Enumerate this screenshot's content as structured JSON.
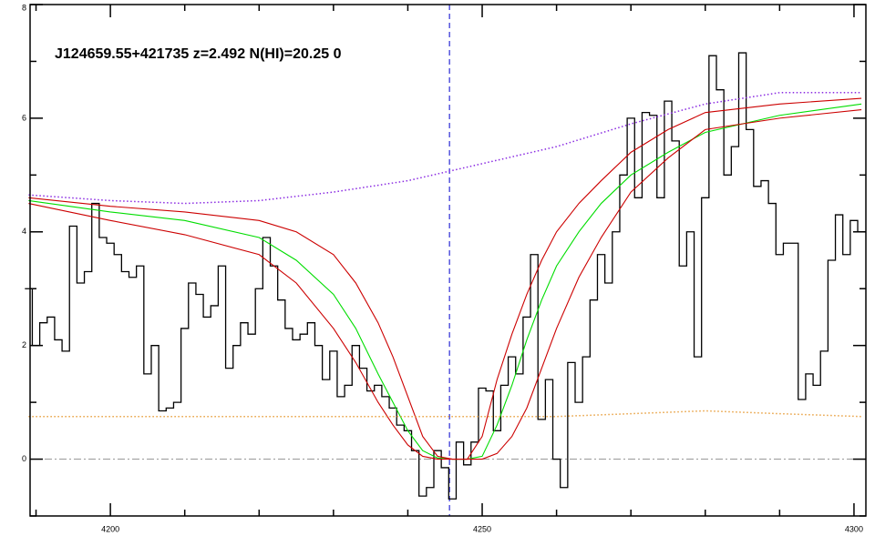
{
  "chart_data": {
    "type": "line",
    "title": "J124659.55+421735 z=2.492 N(HI)=20.25 0",
    "xlim": [
      4189.2,
      4301.6
    ],
    "ylim": [
      -1,
      8
    ],
    "xticks": [
      4200,
      4250,
      4300
    ],
    "yticks": [
      0,
      2,
      4,
      6,
      8
    ],
    "xminorticks": [
      4190,
      4210,
      4220,
      4230,
      4240,
      4260,
      4270,
      4280,
      4290
    ],
    "yminorticks": [
      -1,
      1,
      3,
      5,
      7
    ],
    "vline": 4245.6,
    "hline": 0,
    "series": [
      {
        "color": "#000000",
        "step": true,
        "x": [
          4189,
          4190,
          4191,
          4192,
          4193,
          4194,
          4195,
          4196,
          4197,
          4198,
          4199,
          4200,
          4201,
          4202,
          4203,
          4204,
          4205,
          4206,
          4207,
          4208,
          4209,
          4210,
          4211,
          4212,
          4213,
          4214,
          4215,
          4216,
          4217,
          4218,
          4219,
          4220,
          4221,
          4222,
          4223,
          4224,
          4225,
          4226,
          4227,
          4228,
          4229,
          4230,
          4231,
          4232,
          4233,
          4234,
          4235,
          4236,
          4237,
          4238,
          4239,
          4240,
          4241,
          4242,
          4243,
          4244,
          4245,
          4246,
          4247,
          4248,
          4249,
          4250,
          4251,
          4252,
          4253,
          4254,
          4255,
          4256,
          4257,
          4258,
          4259,
          4260,
          4261,
          4262,
          4263,
          4264,
          4265,
          4266,
          4267,
          4268,
          4269,
          4270,
          4271,
          4272,
          4273,
          4274,
          4275,
          4276,
          4277,
          4278,
          4279,
          4280,
          4281,
          4282,
          4283,
          4284,
          4285,
          4286,
          4287,
          4288,
          4289,
          4290,
          4291,
          4292,
          4293,
          4294,
          4295,
          4296,
          4297,
          4298,
          4299,
          4300,
          4301
        ],
        "values": [
          3.0,
          2.0,
          2.4,
          2.5,
          2.1,
          1.9,
          4.1,
          3.1,
          3.3,
          4.5,
          3.9,
          3.8,
          3.6,
          3.3,
          3.2,
          3.4,
          1.5,
          2.0,
          0.85,
          0.9,
          1.0,
          2.3,
          3.1,
          2.9,
          2.5,
          2.7,
          3.4,
          1.6,
          2.0,
          2.4,
          2.2,
          3.0,
          3.9,
          3.4,
          2.8,
          2.3,
          2.1,
          2.2,
          2.4,
          2.0,
          1.4,
          1.9,
          1.1,
          1.3,
          2.0,
          1.6,
          1.2,
          1.3,
          1.1,
          0.9,
          0.6,
          0.5,
          0.15,
          -0.65,
          -0.5,
          0.15,
          -0.15,
          -0.7,
          0.3,
          -0.1,
          0.3,
          1.25,
          1.2,
          0.5,
          1.3,
          1.8,
          1.5,
          2.5,
          3.6,
          0.7,
          1.4,
          0.0,
          -0.5,
          1.7,
          1.0,
          1.8,
          2.8,
          3.6,
          3.1,
          4.0,
          5.0,
          6.0,
          4.6,
          6.1,
          6.05,
          4.6,
          6.3,
          5.6,
          3.4,
          4.0,
          1.8,
          4.6,
          7.1,
          6.5,
          5.0,
          5.5,
          7.15,
          5.8,
          4.8,
          4.9,
          4.5,
          3.6,
          3.8,
          3.8,
          1.05,
          1.5,
          1.3,
          1.9,
          3.5,
          4.3,
          3.6,
          4.2,
          4.0
        ]
      },
      {
        "color": "#00dd00",
        "x": [
          4189,
          4200,
          4210,
          4220,
          4225,
          4230,
          4233,
          4236,
          4238,
          4240,
          4242,
          4244,
          4246,
          4248,
          4250,
          4252,
          4254,
          4256,
          4258,
          4260,
          4263,
          4266,
          4270,
          4275,
          4280,
          4290,
          4301
        ],
        "values": [
          4.55,
          4.35,
          4.2,
          3.9,
          3.5,
          2.9,
          2.3,
          1.5,
          1.0,
          0.5,
          0.15,
          0.02,
          0,
          0,
          0.05,
          0.6,
          1.3,
          2.1,
          2.8,
          3.4,
          4.0,
          4.5,
          5.0,
          5.4,
          5.75,
          6.05,
          6.25
        ]
      },
      {
        "color": "#cc0000",
        "x": [
          4189,
          4200,
          4210,
          4220,
          4225,
          4230,
          4233,
          4236,
          4238,
          4240,
          4242,
          4244,
          4246,
          4248,
          4250,
          4252,
          4254,
          4256,
          4258,
          4260,
          4263,
          4266,
          4270,
          4275,
          4280,
          4290,
          4301
        ],
        "values": [
          4.6,
          4.45,
          4.35,
          4.2,
          4.0,
          3.6,
          3.1,
          2.4,
          1.8,
          1.1,
          0.4,
          0.05,
          0,
          0,
          0.4,
          1.4,
          2.2,
          2.9,
          3.5,
          4.0,
          4.5,
          4.9,
          5.4,
          5.8,
          6.1,
          6.25,
          6.35
        ]
      },
      {
        "color": "#cc0000",
        "x": [
          4189,
          4200,
          4210,
          4220,
          4225,
          4230,
          4233,
          4236,
          4238,
          4240,
          4242,
          4244,
          4246,
          4248,
          4250,
          4252,
          4254,
          4256,
          4258,
          4260,
          4263,
          4266,
          4270,
          4275,
          4280,
          4290,
          4301
        ],
        "values": [
          4.5,
          4.2,
          3.95,
          3.6,
          3.1,
          2.3,
          1.7,
          1.0,
          0.6,
          0.25,
          0.05,
          0,
          0,
          0,
          0,
          0.1,
          0.4,
          0.9,
          1.6,
          2.3,
          3.2,
          3.9,
          4.7,
          5.3,
          5.8,
          6.0,
          6.15
        ]
      },
      {
        "color": "#8a2be2",
        "dash": "dotted",
        "x": [
          4189,
          4200,
          4210,
          4220,
          4230,
          4240,
          4250,
          4260,
          4270,
          4280,
          4290,
          4301
        ],
        "values": [
          4.65,
          4.55,
          4.5,
          4.55,
          4.7,
          4.9,
          5.2,
          5.5,
          5.9,
          6.25,
          6.45,
          6.45
        ]
      },
      {
        "color": "#e8a040",
        "dash": "dotted",
        "x": [
          4189,
          4200,
          4210,
          4220,
          4230,
          4240,
          4250,
          4260,
          4270,
          4280,
          4290,
          4301
        ],
        "values": [
          0.75,
          0.75,
          0.75,
          0.75,
          0.75,
          0.75,
          0.75,
          0.75,
          0.8,
          0.85,
          0.8,
          0.75
        ]
      }
    ]
  }
}
